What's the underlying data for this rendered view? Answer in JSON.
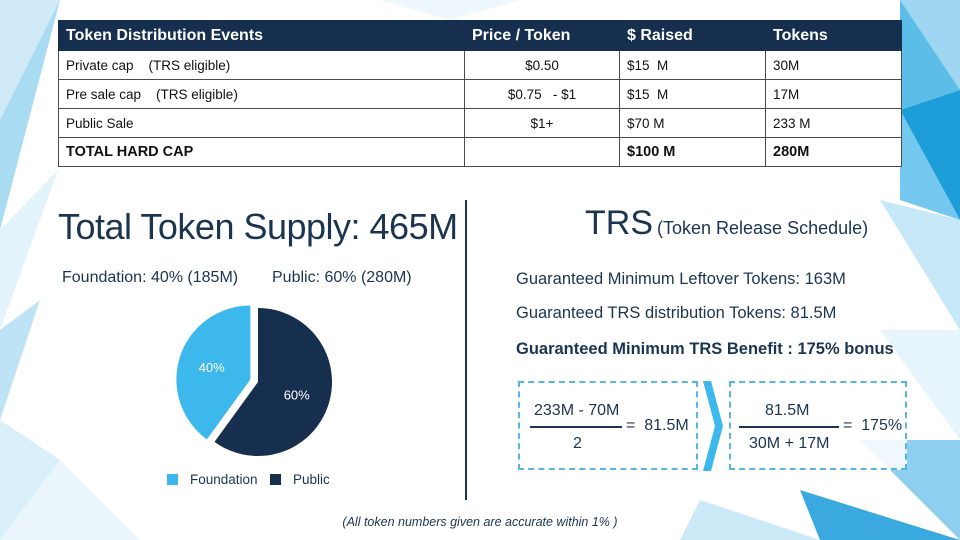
{
  "table": {
    "headers": [
      "Token Distribution Events",
      "Price / Token",
      "$ Raised",
      "Tokens"
    ],
    "rows": [
      [
        "Private cap    (TRS eligible)",
        "$0.50",
        "$15  M",
        "30M"
      ],
      [
        "Pre sale cap    (TRS eligible)",
        "$0.75   - $1",
        "$15  M",
        "17M"
      ],
      [
        "Public Sale",
        "$1+",
        "$70 M",
        "233 M"
      ],
      [
        "TOTAL HARD CAP",
        "",
        "$100 M",
        "280M"
      ]
    ]
  },
  "supply": {
    "title": "Total Token Supply: 465M",
    "foundation_caption": "Foundation: 40% (185M)",
    "public_caption": "Public: 60% (280M)",
    "pie": {
      "type": "pie",
      "slices": [
        {
          "label": "Foundation",
          "value": 40,
          "text": "40%",
          "color": "#3db8ec"
        },
        {
          "label": "Public",
          "value": 60,
          "text": "60%",
          "color": "#172f4f"
        }
      ]
    },
    "legend": [
      "Foundation",
      "Public"
    ]
  },
  "trs": {
    "title": "TRS",
    "subtitle": "(Token Release Schedule)",
    "line1": "Guaranteed Minimum Leftover Tokens: 163M",
    "line2": "Guaranteed TRS distribution Tokens: 81.5M",
    "line3": "Guaranteed Minimum TRS Benefit : 175% bonus",
    "formula1": {
      "numerator": "233M - 70M",
      "denominator": "2",
      "result": "=  81.5M"
    },
    "formula2": {
      "numerator": "81.5M",
      "denominator": "30M + 17M",
      "result": "=  175%"
    },
    "accent": "#58b7e2"
  },
  "note": "(All token numbers given are accurate within 1% )"
}
